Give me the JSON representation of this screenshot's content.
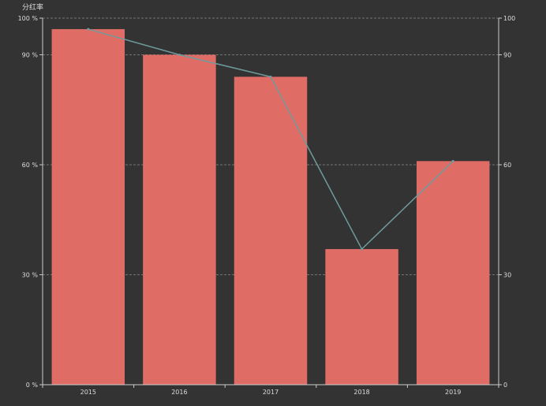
{
  "chart_data": {
    "type": "bar",
    "categories": [
      "2015",
      "2016",
      "2017",
      "2018",
      "2019"
    ],
    "series": [
      {
        "type": "bar",
        "values": [
          97,
          90,
          84,
          37,
          61
        ]
      },
      {
        "type": "line",
        "values": [
          97,
          90,
          84,
          37,
          61
        ]
      }
    ],
    "ylabel": "分红率",
    "ylim": [
      0,
      100
    ],
    "yticks_left": [
      "0 %",
      "30 %",
      "60 %",
      "90 %",
      "100 %"
    ],
    "yticks_right": [
      "0",
      "30",
      "60",
      "90",
      "100"
    ],
    "ytick_values": [
      0,
      30,
      60,
      90,
      100
    ],
    "grid": true,
    "colors": {
      "bar": "#e06c66",
      "line": "#6f9b9c",
      "axis": "#cccccc",
      "grid": "#8a8a8a",
      "background": "#333333"
    }
  }
}
